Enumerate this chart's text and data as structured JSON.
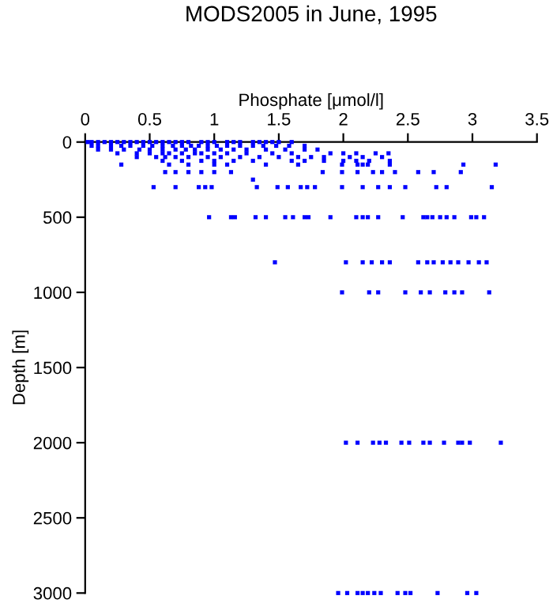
{
  "chart_data": {
    "type": "scatter",
    "title": "MODS2005 in June, 1995",
    "xlabel": "Phosphate [μmol/l]",
    "ylabel": "Depth [m]",
    "xlim": [
      0,
      3.5
    ],
    "xticks": [
      0,
      0.5,
      1,
      1.5,
      2,
      2.5,
      3,
      3.5
    ],
    "ylim": [
      3000,
      0
    ],
    "yticks": [
      0,
      500,
      1000,
      1500,
      2000,
      2500,
      3000
    ],
    "grid": false,
    "legend": false,
    "marker": "square",
    "series": [
      {
        "color": "#0000ff",
        "x": [
          0.02,
          0.05,
          0.1,
          0.15,
          0.2,
          0.25,
          0.3,
          0.35,
          0.4,
          0.45,
          0.5,
          0.55,
          0.6,
          0.65,
          0.7,
          0.75,
          0.8,
          0.9,
          0.95,
          1.0,
          1.1,
          1.15,
          1.2,
          1.3,
          1.35,
          1.4,
          1.45,
          1.5,
          1.6
        ],
        "values": [
          0,
          0,
          0,
          0,
          0,
          0,
          0,
          0,
          0,
          0,
          0,
          0,
          0,
          0,
          0,
          0,
          0,
          0,
          0,
          0,
          0,
          0,
          0,
          0,
          0,
          0,
          0,
          0,
          0
        ]
      },
      {
        "color": "#0000ff",
        "x": [
          0.05,
          0.1,
          0.2,
          0.28,
          0.35,
          0.45,
          0.52,
          0.6,
          0.68,
          0.75,
          0.82,
          0.88,
          0.95,
          1.02,
          1.1,
          1.2,
          1.3,
          1.38,
          1.48,
          1.58,
          1.7
        ],
        "values": [
          25,
          25,
          25,
          25,
          25,
          25,
          25,
          25,
          25,
          25,
          25,
          25,
          25,
          25,
          25,
          25,
          25,
          25,
          25,
          25,
          25
        ]
      },
      {
        "color": "#0000ff",
        "x": [
          0.1,
          0.2,
          0.3,
          0.42,
          0.5,
          0.6,
          0.7,
          0.78,
          0.85,
          0.95,
          1.05,
          1.15,
          1.25,
          1.4,
          1.55,
          1.7,
          1.8
        ],
        "values": [
          50,
          50,
          50,
          50,
          50,
          50,
          50,
          50,
          50,
          50,
          50,
          50,
          50,
          50,
          50,
          50,
          50
        ]
      },
      {
        "color": "#0000ff",
        "x": [
          0.25,
          0.4,
          0.5,
          0.6,
          0.65,
          0.75,
          0.85,
          0.9,
          1.0,
          1.1,
          1.25,
          1.45,
          1.6,
          1.9,
          2.0,
          2.1,
          2.25,
          2.35
        ],
        "values": [
          75,
          75,
          75,
          75,
          75,
          75,
          75,
          75,
          75,
          75,
          75,
          75,
          75,
          75,
          75,
          75,
          75,
          75
        ]
      },
      {
        "color": "#0000ff",
        "x": [
          0.4,
          0.55,
          0.62,
          0.7,
          0.8,
          0.95,
          1.05,
          1.2,
          1.35,
          1.5,
          1.65,
          1.75,
          1.85,
          2.05,
          2.15,
          2.3
        ],
        "values": [
          100,
          100,
          100,
          100,
          100,
          100,
          100,
          100,
          100,
          100,
          100,
          100,
          100,
          100,
          100,
          100
        ]
      },
      {
        "color": "#0000ff",
        "x": [
          0.6,
          0.75,
          0.9,
          1.0,
          1.15,
          1.3,
          1.6,
          1.7,
          1.85,
          2.0,
          2.1,
          2.2,
          2.36
        ],
        "values": [
          125,
          125,
          125,
          125,
          125,
          125,
          125,
          125,
          125,
          125,
          125,
          125,
          125
        ]
      },
      {
        "color": "#0000ff",
        "x": [
          0.28,
          0.65,
          0.8,
          1.0,
          1.1,
          1.4,
          1.65,
          1.99,
          2.11,
          2.15,
          2.19,
          2.36,
          2.93,
          3.18
        ],
        "values": [
          150,
          150,
          150,
          150,
          150,
          150,
          150,
          150,
          150,
          150,
          150,
          150,
          150,
          150
        ]
      },
      {
        "color": "#0000ff",
        "x": [
          0.62,
          0.7,
          0.8,
          0.9,
          1.0,
          1.13,
          1.84,
          1.99,
          2.11,
          2.23,
          2.3,
          2.4,
          2.58,
          2.7,
          2.91
        ],
        "values": [
          200,
          200,
          200,
          200,
          200,
          200,
          200,
          200,
          200,
          200,
          200,
          200,
          200,
          200,
          200
        ]
      },
      {
        "color": "#0000ff",
        "x": [
          1.3
        ],
        "values": [
          250
        ]
      },
      {
        "color": "#0000ff",
        "x": [
          0.53,
          0.7,
          0.88,
          0.93,
          0.98,
          1.33,
          1.49,
          1.57,
          1.67,
          1.72,
          1.78,
          1.99,
          2.15,
          2.27,
          2.36,
          2.48,
          2.72,
          2.8,
          3.15
        ],
        "values": [
          300,
          300,
          300,
          300,
          300,
          300,
          300,
          300,
          300,
          300,
          300,
          300,
          300,
          300,
          300,
          300,
          300,
          300,
          300
        ]
      },
      {
        "color": "#0000ff",
        "x": [
          0.96,
          1.13,
          1.16,
          1.32,
          1.4,
          1.55,
          1.61,
          1.7,
          1.73,
          1.9,
          2.1,
          2.15,
          2.19,
          2.27,
          2.46,
          2.62,
          2.65,
          2.69,
          2.75,
          2.8,
          2.86,
          2.99,
          3.03,
          3.09
        ],
        "values": [
          500,
          500,
          500,
          500,
          500,
          500,
          500,
          500,
          500,
          500,
          500,
          500,
          500,
          500,
          500,
          500,
          500,
          500,
          500,
          500,
          500,
          500,
          500,
          500
        ]
      },
      {
        "color": "#0000ff",
        "x": [
          1.47,
          2.02,
          2.15,
          2.22,
          2.3,
          2.36,
          2.58,
          2.65,
          2.7,
          2.77,
          2.83,
          2.89,
          2.97,
          3.05,
          3.11
        ],
        "values": [
          800,
          800,
          800,
          800,
          800,
          800,
          800,
          800,
          800,
          800,
          800,
          800,
          800,
          800,
          800
        ]
      },
      {
        "color": "#0000ff",
        "x": [
          1.99,
          2.2,
          2.27,
          2.48,
          2.6,
          2.67,
          2.79,
          2.86,
          2.92,
          3.13
        ],
        "values": [
          1000,
          1000,
          1000,
          1000,
          1000,
          1000,
          1000,
          1000,
          1000,
          1000
        ]
      },
      {
        "color": "#0000ff",
        "x": [
          2.02,
          2.11,
          2.23,
          2.28,
          2.33,
          2.45,
          2.51,
          2.62,
          2.67,
          2.78,
          2.89,
          2.92,
          2.98,
          3.22
        ],
        "values": [
          2000,
          2000,
          2000,
          2000,
          2000,
          2000,
          2000,
          2000,
          2000,
          2000,
          2000,
          2000,
          2000,
          2000
        ]
      },
      {
        "color": "#0000ff",
        "x": [
          1.96,
          2.03,
          2.11,
          2.15,
          2.19,
          2.24,
          2.29,
          2.42,
          2.48,
          2.52,
          2.73,
          2.96,
          3.03
        ],
        "values": [
          3000,
          3000,
          3000,
          3000,
          3000,
          3000,
          3000,
          3000,
          3000,
          3000,
          3000,
          3000,
          3000
        ]
      }
    ]
  }
}
